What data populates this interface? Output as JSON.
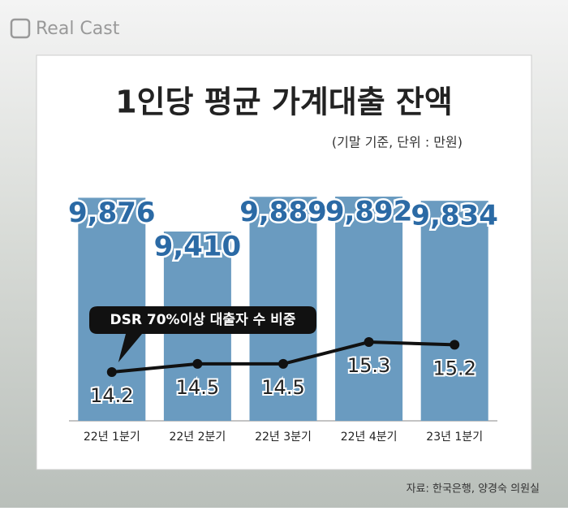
{
  "logo": "Real Cast",
  "source": "자료: 한국은행, 양경숙 의원실",
  "chart_data": {
    "type": "bar",
    "title": "1인당 평균 가계대출 잔액",
    "subtitle": "(기말 기준, 단위 : 만원)",
    "categories": [
      "22년 1분기",
      "22년 2분기",
      "22년 3분기",
      "22년 4분기",
      "23년 1분기"
    ],
    "values": [
      9876,
      9410,
      9889,
      9892,
      9834
    ],
    "value_labels": [
      "9,876",
      "9,410",
      "9,889",
      "9,892",
      "9,834"
    ],
    "color": "#6a9bc0",
    "line": {
      "name": "DSR 70%이상 대출자 수 비중",
      "values": [
        14.2,
        14.5,
        14.5,
        15.3,
        15.2
      ],
      "color": "#111111"
    }
  }
}
